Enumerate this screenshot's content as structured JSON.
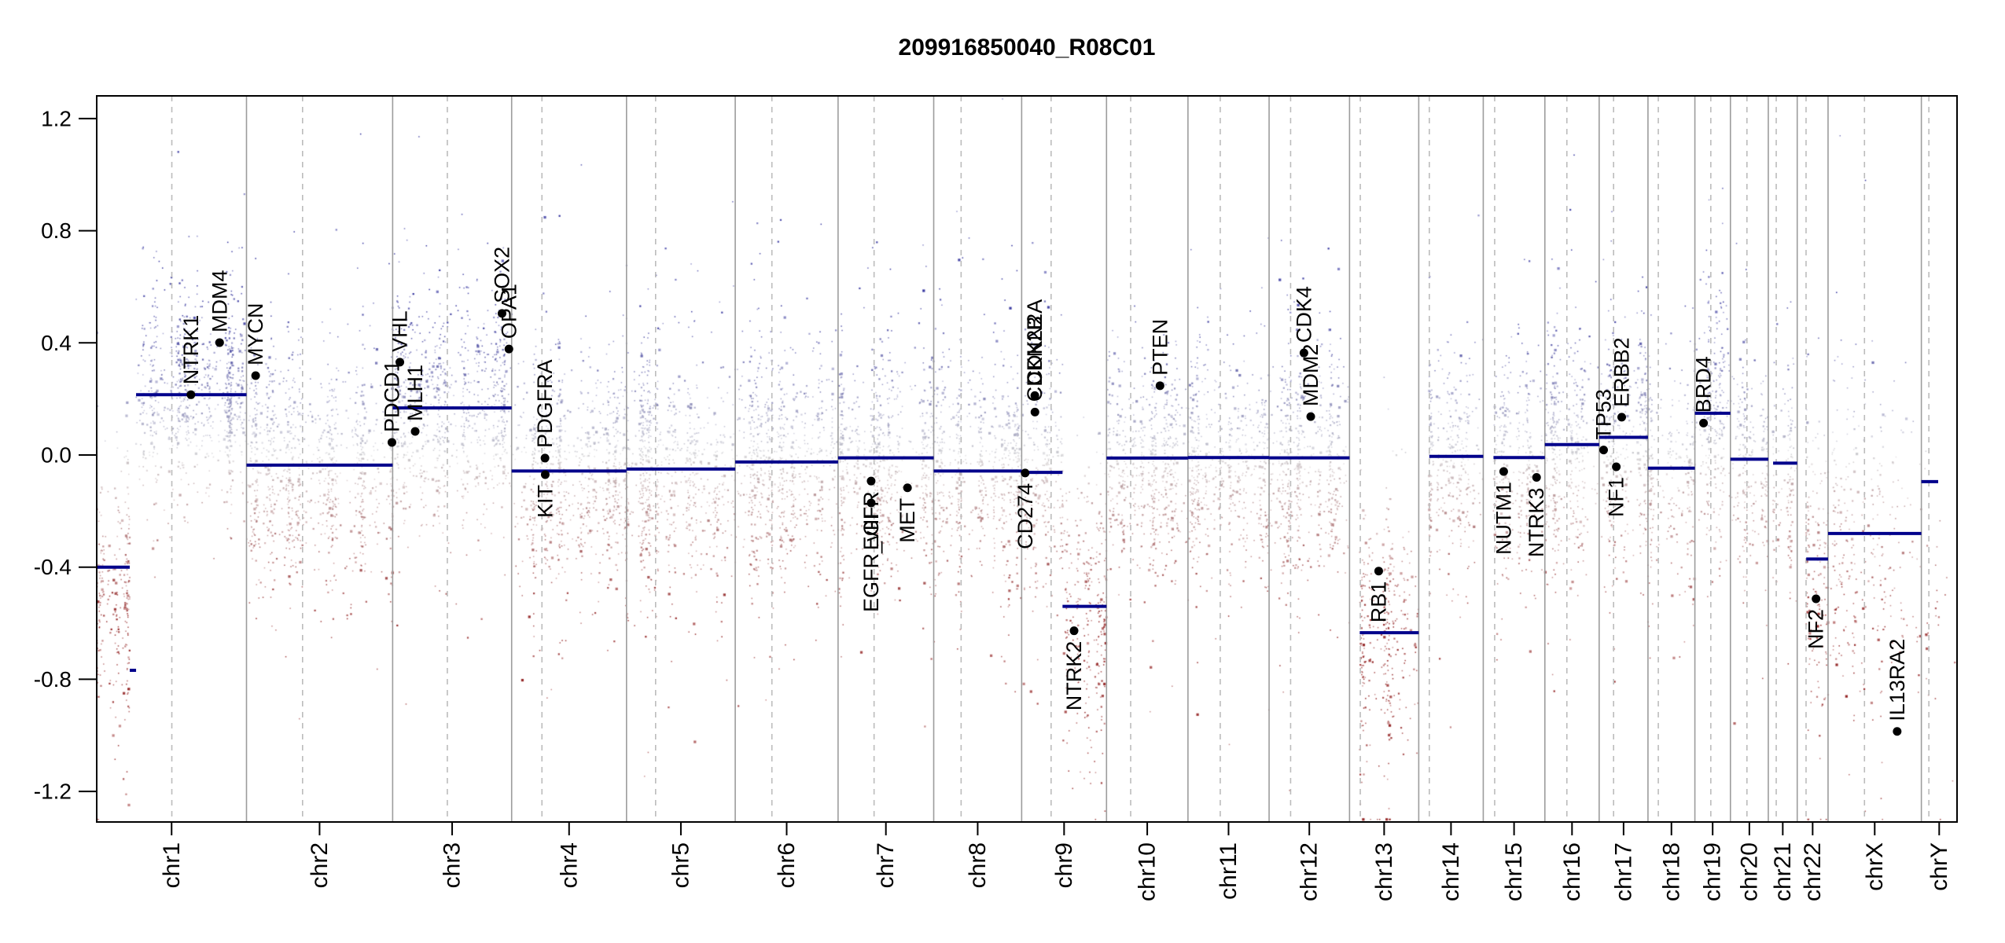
{
  "title": "209916850040_R08C01",
  "chart_data": {
    "type": "scatter",
    "title": "209916850040_R08C01",
    "xlabel": "",
    "ylabel": "",
    "ylim": [
      -1.31,
      1.28
    ],
    "yticks": [
      1.2,
      0.8,
      0.4,
      0.0,
      -0.4,
      -0.8,
      -1.2
    ],
    "ytick_labels": [
      "1.2",
      "0.8",
      "0.4",
      "0.0",
      "-0.4",
      "-0.8",
      "-1.2"
    ],
    "grid": false,
    "legend": "none",
    "colors": {
      "segment": "#00008B",
      "gain": "#1E1E94",
      "loss": "#8F1B1B",
      "neutral": "#C9C9CC",
      "separator": "#9C9C9C",
      "centromere": "#BCBCBC",
      "box": "#000000",
      "gene_dot": "#000000",
      "text": "#000000"
    },
    "chromosomes": [
      {
        "name": "chr1",
        "length_mb": 249.25,
        "centromere_mb": 125.0,
        "segments": [
          [
            0,
            55,
            -0.4
          ],
          [
            55,
            65.5,
            -0.768
          ],
          [
            65.5,
            249.25,
            0.215
          ]
        ],
        "cloud": [
          [
            0,
            55,
            -0.45,
            0.24,
            280
          ],
          [
            65.5,
            249.25,
            0.21,
            0.17,
            850
          ]
        ]
      },
      {
        "name": "chr2",
        "length_mb": 243.2,
        "centromere_mb": 93.3,
        "segments": [
          [
            0,
            243.2,
            -0.036
          ]
        ],
        "cloud": [
          [
            0,
            243.2,
            -0.05,
            0.2,
            1050
          ]
        ]
      },
      {
        "name": "chr3",
        "length_mb": 198.02,
        "centromere_mb": 91.0,
        "segments": [
          [
            0,
            198.02,
            0.168
          ]
        ],
        "cloud": [
          [
            0,
            198.02,
            0.16,
            0.2,
            860
          ]
        ]
      },
      {
        "name": "chr4",
        "length_mb": 191.15,
        "centromere_mb": 50.4,
        "segments": [
          [
            0,
            191.15,
            -0.057
          ]
        ],
        "cloud": [
          [
            0,
            191.15,
            -0.07,
            0.2,
            820
          ]
        ]
      },
      {
        "name": "chr5",
        "length_mb": 180.92,
        "centromere_mb": 48.4,
        "segments": [
          [
            0,
            180.92,
            -0.05
          ]
        ],
        "cloud": [
          [
            0,
            180.92,
            -0.06,
            0.2,
            780
          ]
        ]
      },
      {
        "name": "chr6",
        "length_mb": 171.12,
        "centromere_mb": 61.0,
        "segments": [
          [
            0,
            171.12,
            -0.025
          ]
        ],
        "cloud": [
          [
            0,
            171.12,
            -0.04,
            0.2,
            740
          ]
        ]
      },
      {
        "name": "chr7",
        "length_mb": 159.14,
        "centromere_mb": 59.9,
        "segments": [
          [
            0,
            159.14,
            -0.01
          ]
        ],
        "cloud": [
          [
            0,
            159.14,
            -0.03,
            0.2,
            690
          ]
        ]
      },
      {
        "name": "chr8",
        "length_mb": 146.36,
        "centromere_mb": 45.6,
        "segments": [
          [
            0,
            146.36,
            -0.057
          ]
        ],
        "cloud": [
          [
            0,
            146.36,
            -0.07,
            0.2,
            630
          ]
        ]
      },
      {
        "name": "chr9",
        "length_mb": 141.21,
        "centromere_mb": 49.0,
        "segments": [
          [
            0,
            68,
            -0.062
          ],
          [
            68,
            141.21,
            -0.54
          ]
        ],
        "cloud": [
          [
            0,
            68,
            -0.08,
            0.2,
            260
          ],
          [
            68,
            141.21,
            -0.55,
            0.24,
            280
          ]
        ]
      },
      {
        "name": "chr10",
        "length_mb": 135.53,
        "centromere_mb": 40.2,
        "segments": [
          [
            0,
            135.53,
            -0.011
          ]
        ],
        "cloud": [
          [
            0,
            135.53,
            -0.03,
            0.19,
            580
          ]
        ]
      },
      {
        "name": "chr11",
        "length_mb": 135.01,
        "centromere_mb": 53.7,
        "segments": [
          [
            0,
            135.01,
            -0.009
          ]
        ],
        "cloud": [
          [
            0,
            135.01,
            -0.03,
            0.19,
            580
          ]
        ]
      },
      {
        "name": "chr12",
        "length_mb": 133.85,
        "centromere_mb": 35.8,
        "segments": [
          [
            0,
            133.85,
            -0.01
          ]
        ],
        "cloud": [
          [
            0,
            133.85,
            -0.03,
            0.19,
            580
          ]
        ]
      },
      {
        "name": "chr13",
        "length_mb": 115.17,
        "centromere_mb": 17.9,
        "segments": [
          [
            17,
            115.17,
            -0.634
          ]
        ],
        "cloud": [
          [
            17,
            115.17,
            -0.63,
            0.24,
            330
          ]
        ]
      },
      {
        "name": "chr14",
        "length_mb": 107.35,
        "centromere_mb": 17.6,
        "segments": [
          [
            17.6,
            107.35,
            -0.005
          ]
        ],
        "cloud": [
          [
            17.6,
            107.35,
            -0.03,
            0.19,
            340
          ]
        ]
      },
      {
        "name": "chr15",
        "length_mb": 102.53,
        "centromere_mb": 19.0,
        "segments": [
          [
            17,
            102.53,
            -0.009
          ]
        ],
        "cloud": [
          [
            17,
            102.53,
            -0.03,
            0.19,
            330
          ]
        ]
      },
      {
        "name": "chr16",
        "length_mb": 90.35,
        "centromere_mb": 36.6,
        "segments": [
          [
            0,
            90.35,
            0.037
          ]
        ],
        "cloud": [
          [
            0,
            90.35,
            0.02,
            0.21,
            380
          ]
        ]
      },
      {
        "name": "chr17",
        "length_mb": 81.2,
        "centromere_mb": 24.0,
        "segments": [
          [
            0,
            81.2,
            0.063
          ]
        ],
        "cloud": [
          [
            0,
            81.2,
            0.05,
            0.21,
            360
          ]
        ]
      },
      {
        "name": "chr18",
        "length_mb": 78.08,
        "centromere_mb": 17.2,
        "segments": [
          [
            0,
            78.08,
            -0.047
          ]
        ],
        "cloud": [
          [
            0,
            78.08,
            -0.06,
            0.19,
            260
          ]
        ]
      },
      {
        "name": "chr19",
        "length_mb": 59.13,
        "centromere_mb": 26.5,
        "segments": [
          [
            0,
            59.13,
            0.149
          ]
        ],
        "cloud": [
          [
            0,
            59.13,
            0.14,
            0.21,
            260
          ]
        ]
      },
      {
        "name": "chr20",
        "length_mb": 63.03,
        "centromere_mb": 27.5,
        "segments": [
          [
            0,
            63.03,
            -0.015
          ]
        ],
        "cloud": [
          [
            0,
            63.03,
            -0.03,
            0.19,
            220
          ]
        ]
      },
      {
        "name": "chr21",
        "length_mb": 48.13,
        "centromere_mb": 13.2,
        "segments": [
          [
            8,
            48.13,
            -0.029
          ]
        ],
        "cloud": [
          [
            8,
            48.13,
            -0.05,
            0.2,
            130
          ]
        ]
      },
      {
        "name": "chr22",
        "length_mb": 51.3,
        "centromere_mb": 14.7,
        "segments": [
          [
            15,
            51.3,
            -0.371
          ]
        ],
        "cloud": [
          [
            15,
            51.3,
            -0.4,
            0.26,
            160
          ]
        ]
      },
      {
        "name": "chrX",
        "length_mb": 155.27,
        "centromere_mb": 60.6,
        "segments": [
          [
            0,
            155.27,
            -0.28
          ]
        ],
        "cloud": [
          [
            0,
            155.27,
            -0.3,
            0.28,
            300
          ]
        ]
      },
      {
        "name": "chrY",
        "length_mb": 59.37,
        "centromere_mb": 12.5,
        "segments": [
          [
            0,
            28,
            -0.095
          ]
        ],
        "cloud": [
          [
            0,
            59.37,
            -0.45,
            0.3,
            25
          ]
        ]
      }
    ],
    "genes": [
      {
        "name": "NTRK1",
        "chrom": "chr1",
        "pos_mb": 156.8,
        "value": 0.215,
        "label_side": "above"
      },
      {
        "name": "MDM4",
        "chrom": "chr1",
        "pos_mb": 204.5,
        "value": 0.401,
        "label_side": "above"
      },
      {
        "name": "MYCN",
        "chrom": "chr2",
        "pos_mb": 15.2,
        "value": 0.283,
        "label_side": "above"
      },
      {
        "name": "PDCD1",
        "chrom": "chr2",
        "pos_mb": 242.0,
        "value": 0.045,
        "label_side": "above"
      },
      {
        "name": "VHL",
        "chrom": "chr3",
        "pos_mb": 12.0,
        "value": 0.331,
        "label_side": "above"
      },
      {
        "name": "MLH1",
        "chrom": "chr3",
        "pos_mb": 37.5,
        "value": 0.084,
        "label_side": "above"
      },
      {
        "name": "SOX2",
        "chrom": "chr3",
        "pos_mb": 182.0,
        "value": 0.505,
        "label_side": "above"
      },
      {
        "name": "OPA1",
        "chrom": "chr3",
        "pos_mb": 193.5,
        "value": 0.378,
        "label_side": "above"
      },
      {
        "name": "PDGFRA",
        "chrom": "chr4",
        "pos_mb": 55.5,
        "value": -0.011,
        "label_side": "above"
      },
      {
        "name": "KIT",
        "chrom": "chr4",
        "pos_mb": 55.9,
        "value": -0.07,
        "label_side": "below"
      },
      {
        "name": "EGFR",
        "chrom": "chr7",
        "pos_mb": 55.0,
        "value": -0.093,
        "label_side": "below"
      },
      {
        "name": "EGFR_vIII",
        "chrom": "chr7",
        "pos_mb": 55.1,
        "value": -0.171,
        "label_side": "below"
      },
      {
        "name": "MET",
        "chrom": "chr7",
        "pos_mb": 115.5,
        "value": -0.117,
        "label_side": "below"
      },
      {
        "name": "CD274",
        "chrom": "chr9",
        "pos_mb": 5.8,
        "value": -0.064,
        "label_side": "below"
      },
      {
        "name": "CDKN2A",
        "chrom": "chr9",
        "pos_mb": 21.9,
        "value": 0.212,
        "label_side": "above"
      },
      {
        "name": "CDKN2B",
        "chrom": "chr9",
        "pos_mb": 22.1,
        "value": 0.153,
        "label_side": "above"
      },
      {
        "name": "NTRK2",
        "chrom": "chr9",
        "pos_mb": 87.2,
        "value": -0.627,
        "label_side": "below"
      },
      {
        "name": "PTEN",
        "chrom": "chr10",
        "pos_mb": 89.0,
        "value": 0.247,
        "label_side": "above"
      },
      {
        "name": "CDK4",
        "chrom": "chr12",
        "pos_mb": 58.0,
        "value": 0.364,
        "label_side": "above"
      },
      {
        "name": "MDM2",
        "chrom": "chr12",
        "pos_mb": 69.3,
        "value": 0.137,
        "label_side": "above"
      },
      {
        "name": "RB1",
        "chrom": "chr13",
        "pos_mb": 48.5,
        "value": -0.414,
        "label_side": "below"
      },
      {
        "name": "NUTM1",
        "chrom": "chr15",
        "pos_mb": 34.0,
        "value": -0.059,
        "label_side": "below"
      },
      {
        "name": "NTRK3",
        "chrom": "chr15",
        "pos_mb": 88.7,
        "value": -0.08,
        "label_side": "below"
      },
      {
        "name": "TP53",
        "chrom": "chr17",
        "pos_mb": 7.4,
        "value": 0.018,
        "label_side": "above"
      },
      {
        "name": "NF1",
        "chrom": "chr17",
        "pos_mb": 28.5,
        "value": -0.042,
        "label_side": "below"
      },
      {
        "name": "ERBB2",
        "chrom": "chr17",
        "pos_mb": 37.5,
        "value": 0.135,
        "label_side": "above"
      },
      {
        "name": "BRD4",
        "chrom": "chr19",
        "pos_mb": 14.4,
        "value": 0.114,
        "label_side": "above"
      },
      {
        "name": "NF2",
        "chrom": "chr22",
        "pos_mb": 31.3,
        "value": -0.513,
        "label_side": "below"
      },
      {
        "name": "IL13RA2",
        "chrom": "chrX",
        "pos_mb": 115.0,
        "value": -0.986,
        "label_side": "above"
      }
    ]
  }
}
